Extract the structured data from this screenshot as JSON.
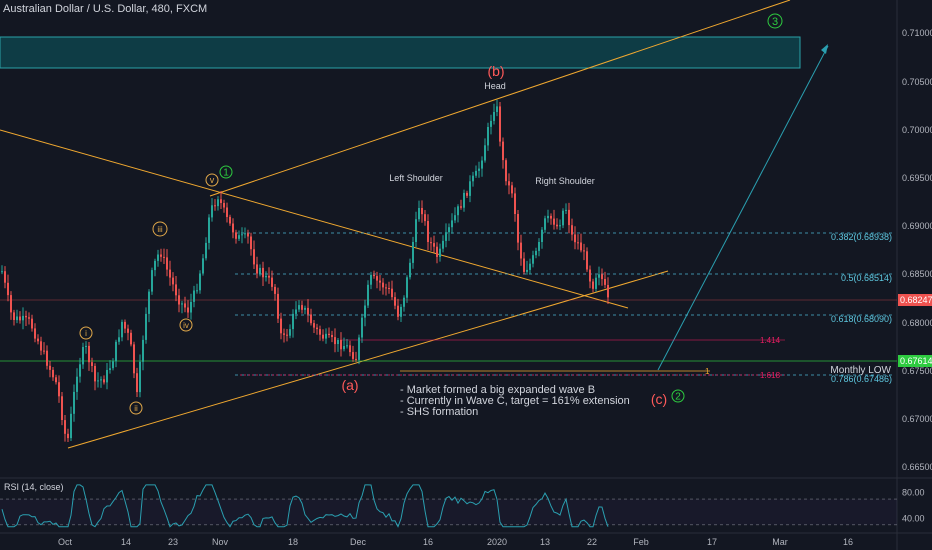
{
  "header": {
    "symbol_title": "Australian Dollar / U.S. Dollar, 480, FXCM"
  },
  "colors": {
    "background": "#131722",
    "up_candle": "#26a69a",
    "down_candle": "#ef5350",
    "trendline": "#f0a830",
    "fib_line": "#4db6d3",
    "zone_fill": "#0e4a52",
    "zone_border": "#2aa2a8",
    "wave_green": "#2ecc40",
    "wave_red": "#ff5a5a",
    "rsi_line": "#2a9fb0",
    "pink": "#e91e63"
  },
  "annotations": {
    "wave_b": "(b)",
    "head": "Head",
    "left_shoulder": "Left Shoulder",
    "right_shoulder": "Right Shoulder",
    "wave_a": "(a)",
    "wave_c": "(c)",
    "wave_1": "1",
    "wave_2": "2",
    "wave_3": "3",
    "wave_v": "v",
    "wave_iii": "iii",
    "wave_iv": "iv",
    "wave_i": "i",
    "wave_ii": "ii",
    "monthly_low": "Monthly LOW",
    "ext_1414": "1.414",
    "ext_1": "1",
    "ext_1618": "1.618",
    "notes": [
      "- Market formed a big expanded wave B",
      "- Currently in Wave C, target = 161% extension",
      "- SHS formation"
    ]
  },
  "chart_data": {
    "type": "candlestick",
    "price_axis": {
      "ticks": [
        "0.71000",
        "0.70500",
        "0.70000",
        "0.69500",
        "0.69000",
        "0.68500",
        "0.68000",
        "0.67500",
        "0.67000",
        "0.66500"
      ],
      "range": [
        0.6645,
        0.7135
      ]
    },
    "time_axis": {
      "ticks": [
        "Oct",
        "14",
        "23",
        "Nov",
        "18",
        "Dec",
        "16",
        "2020",
        "13",
        "22",
        "Feb",
        "17",
        "Mar",
        "16"
      ]
    },
    "price_badges": [
      {
        "label": "0.68247",
        "value": 0.68247,
        "color": "#ef5350"
      },
      {
        "label": "0.67614",
        "value": 0.67614,
        "color": "#2ecc40"
      }
    ],
    "fib_levels": [
      {
        "label": "0.382(0.68938)",
        "value": 0.68938
      },
      {
        "label": "0.5(0.68514)",
        "value": 0.68514
      },
      {
        "label": "0.618(0.68090)",
        "value": 0.6809
      },
      {
        "label": "0.786(0.67486)",
        "value": 0.67486
      }
    ],
    "rsi": {
      "title": "RSI (14, close)",
      "ticks": [
        "80.00",
        "40.00"
      ],
      "range": [
        25,
        95
      ],
      "upper_band": 70,
      "lower_band": 30
    }
  }
}
